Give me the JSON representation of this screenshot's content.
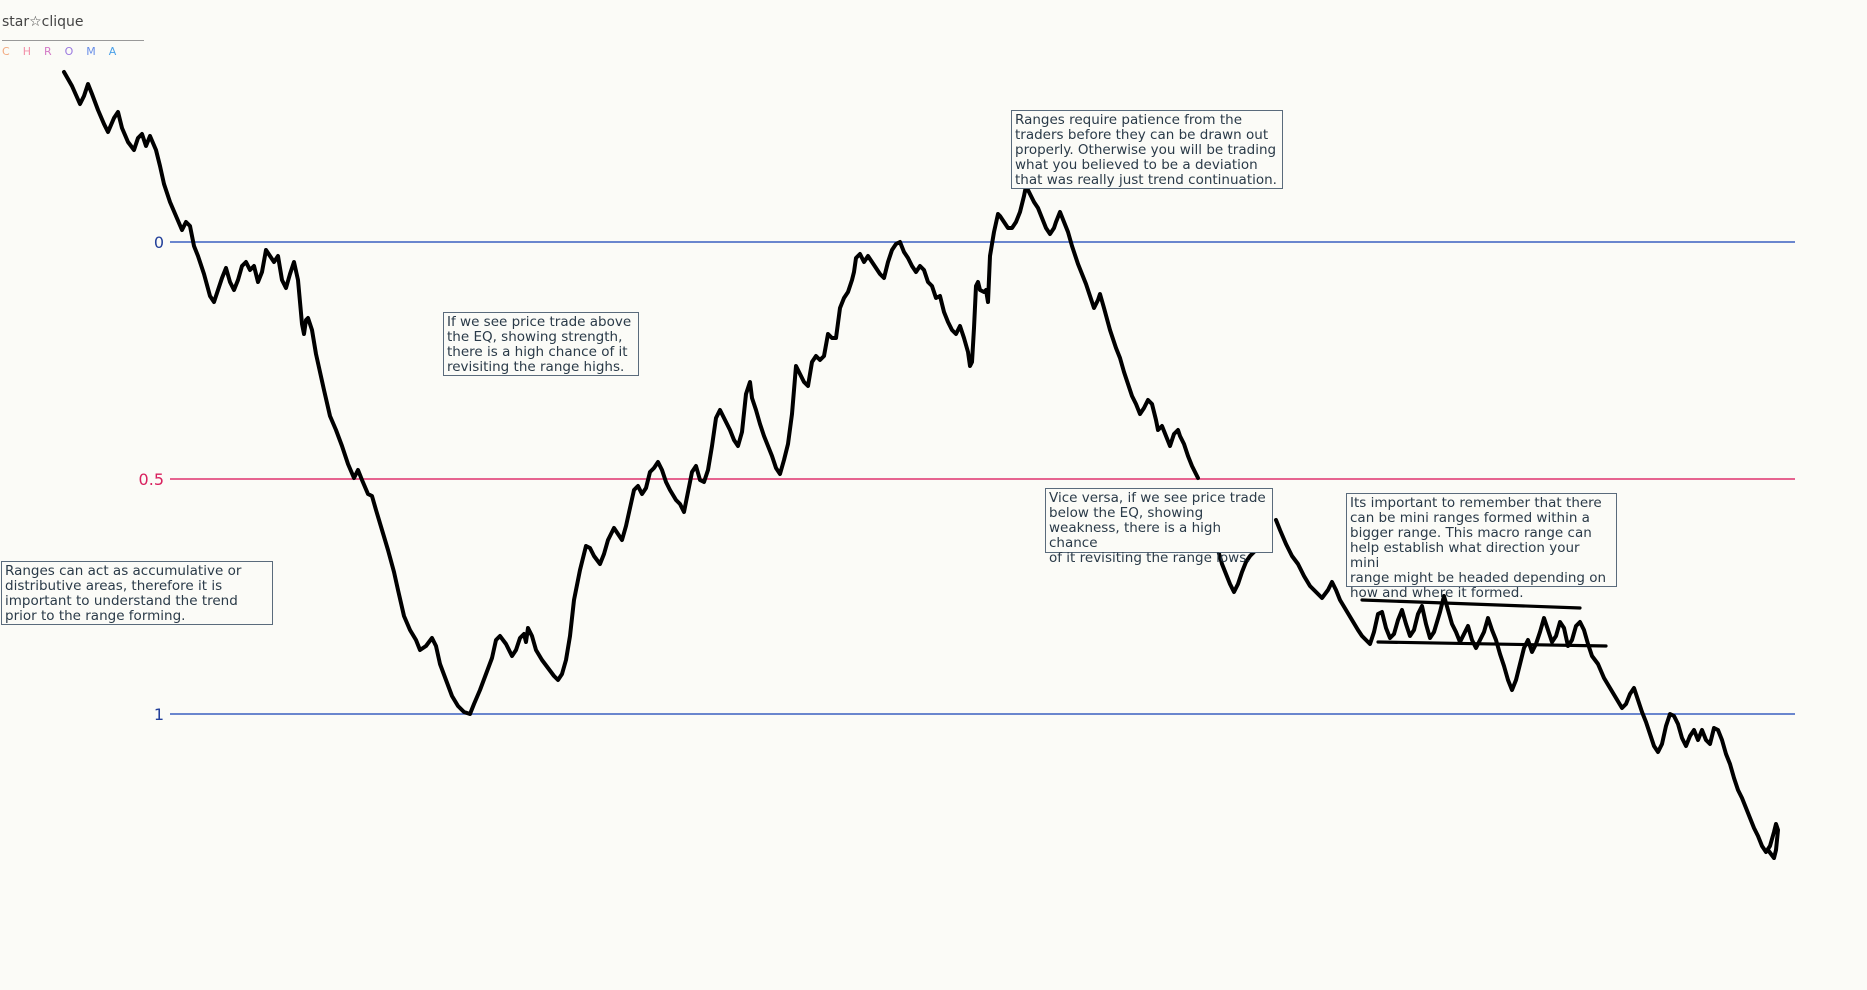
{
  "logo": {
    "brand": "star☆clique",
    "chroma_letters": [
      "C",
      "H",
      "R",
      "O",
      "M",
      "A"
    ],
    "chroma_colors": [
      "#f2a97f",
      "#f28fa8",
      "#d37ac7",
      "#9b7ae0",
      "#6a8fe8",
      "#4aa0e8"
    ]
  },
  "levels": [
    {
      "label": "0",
      "color": "#3a5fc0",
      "label_color": "#23409a"
    },
    {
      "label": "0.5",
      "color": "#e0336e",
      "label_color": "#d8205e"
    },
    {
      "label": "1",
      "color": "#3a5fc0",
      "label_color": "#23409a"
    }
  ],
  "notes": [
    {
      "id": "accumulative",
      "text": "Ranges can act as accumulative or\ndistributive areas, therefore it is\nimportant to understand the trend\nprior to the range forming."
    },
    {
      "id": "above-eq",
      "text": "If we see price trade above\nthe EQ, showing strength,\nthere is a high chance of it\nrevisiting the range highs."
    },
    {
      "id": "patience",
      "text": "Ranges require patience from the\ntraders before they can be drawn out\nproperly. Otherwise you will be trading\nwhat you believed to be a deviation\nthat was really just trend continuation."
    },
    {
      "id": "below-eq",
      "text": "Vice versa, if we see price trade\nbelow the EQ, showing\nweakness, there is a high chance\nof it revisiting the range lows."
    },
    {
      "id": "mini-ranges",
      "text": "Its important to remember that there\ncan be mini ranges formed within a\nbigger range. This macro range can\nhelp establish what direction your mini\nrange might be headed depending on\nhow and where it formed."
    }
  ],
  "colors": {
    "price_line": "#000000",
    "note_border": "#5a6b7c",
    "note_text": "#2a3a48"
  }
}
